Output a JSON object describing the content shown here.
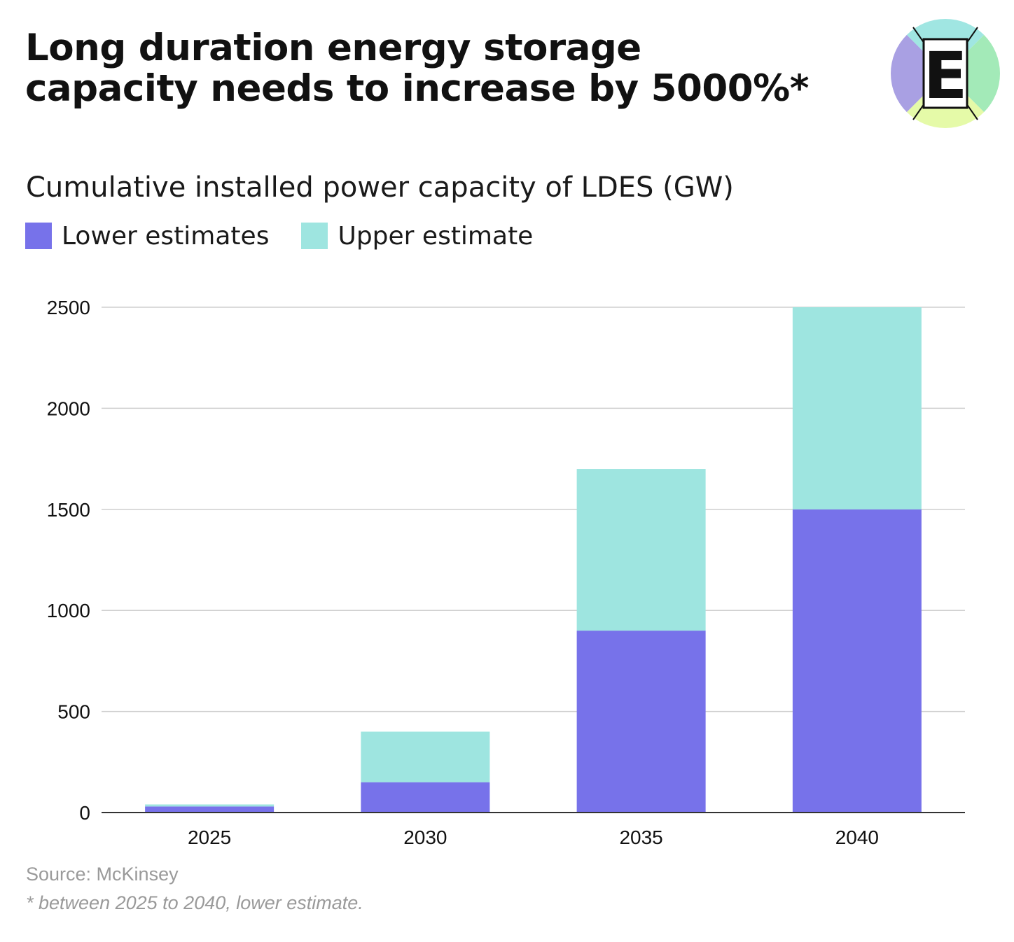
{
  "header": {
    "title_line1": "Long duration energy storage",
    "title_line2": "capacity needs to increase by 5000%*",
    "logo_letter": "E"
  },
  "chart_data": {
    "type": "bar",
    "stacked": true,
    "title": "Cumulative installed power capacity of LDES (GW)",
    "xlabel": "",
    "ylabel": "",
    "categories": [
      "2025",
      "2030",
      "2035",
      "2040"
    ],
    "series": [
      {
        "name": "Lower estimates",
        "color": "#7772EA",
        "values": [
          30,
          150,
          900,
          1500
        ]
      },
      {
        "name": "Upper estimate",
        "color": "#9EE5E0",
        "values": [
          10,
          250,
          800,
          1000
        ]
      }
    ],
    "ylim": [
      0,
      2500
    ],
    "yticks": [
      "0",
      "500",
      "1000",
      "1500",
      "2000",
      "2500"
    ],
    "grid": true,
    "legend_position": "top-left"
  },
  "footer": {
    "source": "Source: McKinsey",
    "note": "* between 2025 to 2040, lower estimate."
  },
  "logo_colors": {
    "top": "#A0E6E2",
    "right": "#A3EAB8",
    "bottom": "#E5FAA8",
    "left": "#A9A0E3"
  }
}
